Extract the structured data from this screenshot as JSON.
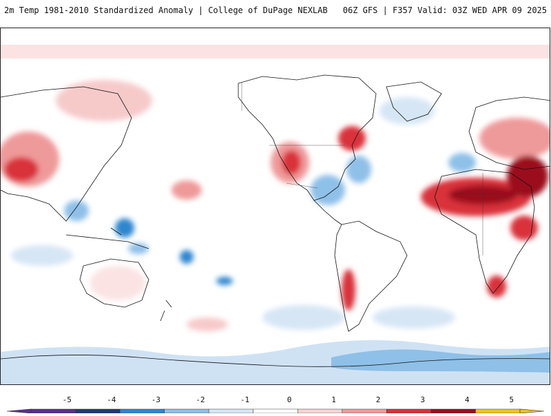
{
  "header": {
    "title_left": "2m Temp 1981-2010 Standardized Anomaly | College of DuPage NEXLAB",
    "title_right": "06Z GFS | F357 Valid: 03Z WED APR 09 2025"
  },
  "colorbar": {
    "labels": [
      "-5",
      "-4",
      "-3",
      "-2",
      "-1",
      "0",
      "1",
      "2",
      "3",
      "4",
      "5"
    ],
    "colors": [
      "#5a2f8f",
      "#203a78",
      "#2f86cf",
      "#8ec0e8",
      "#d6e6f5",
      "#ffffff",
      "#f9d5d5",
      "#ef9a9a",
      "#d9313b",
      "#9b0e1c",
      "#f2c21b"
    ]
  }
}
